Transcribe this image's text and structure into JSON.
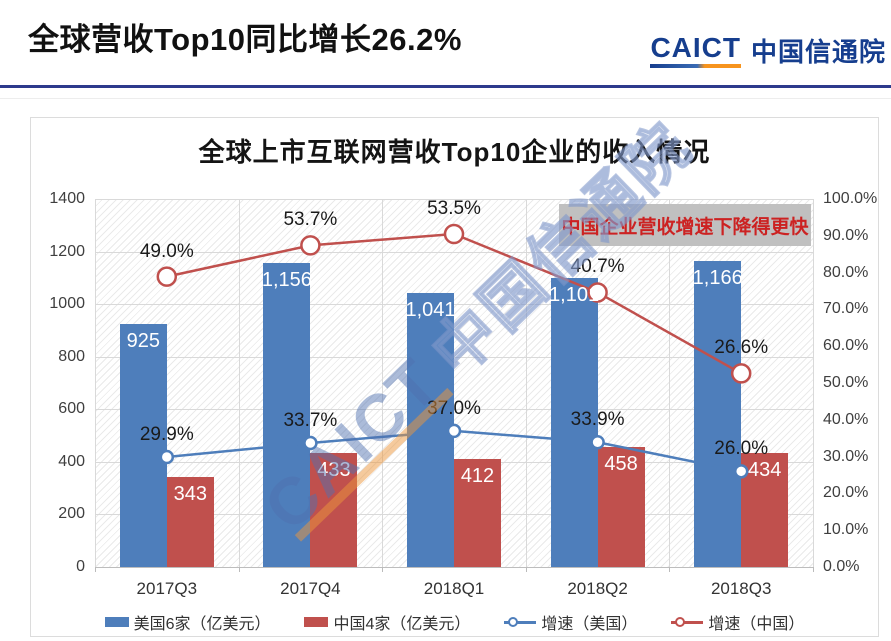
{
  "header": {
    "title": "全球营收Top10同比增长26.2%",
    "logo": {
      "latin": "CAICT",
      "cn": "中国信通院"
    }
  },
  "chart": {
    "title": "全球上市互联网营收Top10企业的收入情况",
    "annotation": "中国企业营收增速下降得更快",
    "watermark": {
      "latin": "CAICT",
      "cn": "中国信通院"
    }
  },
  "chart_data": {
    "type": "bar+line combo",
    "title": "全球上市互联网营收Top10企业的收入情况",
    "categories": [
      "2017Q3",
      "2017Q4",
      "2018Q1",
      "2018Q2",
      "2018Q3"
    ],
    "series": [
      {
        "name": "美国6家（亿美元）",
        "type": "bar",
        "axis": "left",
        "color": "#4E7EBB",
        "values": [
          925,
          1156,
          1041,
          1101,
          1166
        ],
        "labels": [
          "925",
          "1,156",
          "1,041",
          "1,101",
          "1,166"
        ]
      },
      {
        "name": "中国4家（亿美元）",
        "type": "bar",
        "axis": "left",
        "color": "#C0504D",
        "values": [
          343,
          433,
          412,
          458,
          434
        ],
        "labels": [
          "343",
          "433",
          "412",
          "458",
          "434"
        ]
      },
      {
        "name": "增速（美国）",
        "type": "line",
        "axis": "right",
        "color": "#4E7EBB",
        "marker_radius": 6,
        "values": [
          29.9,
          33.7,
          37.0,
          33.9,
          26.0
        ],
        "labels": [
          "29.9%",
          "33.7%",
          "37.0%",
          "33.9%",
          "26.0%"
        ]
      },
      {
        "name": "增速（中国）",
        "type": "line",
        "axis": "right",
        "color": "#C0504D",
        "marker_radius": 9,
        "plotted_stacked_on_us_line": true,
        "values": [
          49.0,
          53.7,
          53.5,
          40.7,
          26.6
        ],
        "labels": [
          "49.0%",
          "53.7%",
          "53.5%",
          "40.7%",
          "26.6%"
        ]
      }
    ],
    "left_axis": {
      "min": 0,
      "max": 1400,
      "step": 200,
      "tick_labels": [
        "1400",
        "1200",
        "1000",
        "800",
        "600",
        "400",
        "200",
        "0"
      ]
    },
    "right_axis": {
      "min": 0,
      "max": 100,
      "step": 10,
      "tick_labels": [
        "100.0%",
        "90.0%",
        "80.0%",
        "70.0%",
        "60.0%",
        "50.0%",
        "40.0%",
        "30.0%",
        "20.0%",
        "10.0%",
        "0.0%"
      ]
    },
    "grid": "horizontal lines at left-axis steps, vertical lines at category boundaries, hatched plot background",
    "legend_position": "bottom"
  }
}
